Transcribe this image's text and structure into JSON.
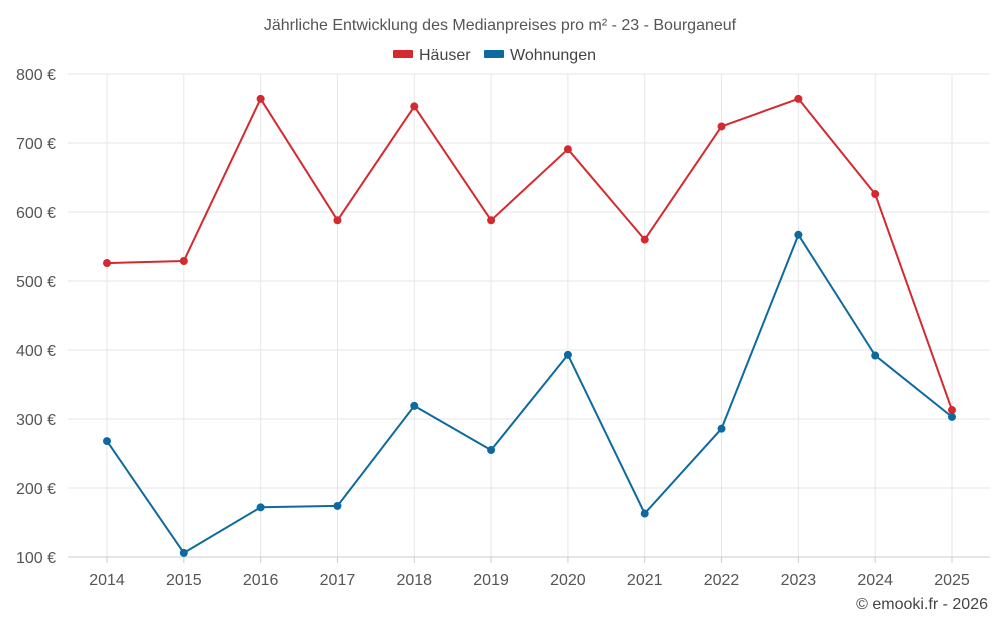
{
  "chart_data": {
    "type": "line",
    "title": "Jährliche Entwicklung des Medianpreises pro m² - 23 - Bourganeuf",
    "categories": [
      "2014",
      "2015",
      "2016",
      "2017",
      "2018",
      "2019",
      "2020",
      "2021",
      "2022",
      "2023",
      "2024",
      "2025"
    ],
    "series": [
      {
        "name": "Häuser",
        "color": "#d42a2f",
        "values": [
          526,
          529,
          764,
          588,
          753,
          588,
          691,
          560,
          724,
          764,
          626,
          313
        ]
      },
      {
        "name": "Wohnungen",
        "color": "#0d6a9f",
        "values": [
          268,
          106,
          172,
          174,
          319,
          255,
          393,
          163,
          286,
          567,
          392,
          303
        ]
      }
    ],
    "ylim": [
      100,
      800
    ],
    "yticks": [
      "100 €",
      "200 €",
      "300 €",
      "400 €",
      "500 €",
      "600 €",
      "700 €",
      "800 €"
    ],
    "xlabel": "",
    "ylabel": "",
    "grid": true,
    "legend_position": "top-center"
  },
  "footer": "© emooki.fr - 2026"
}
